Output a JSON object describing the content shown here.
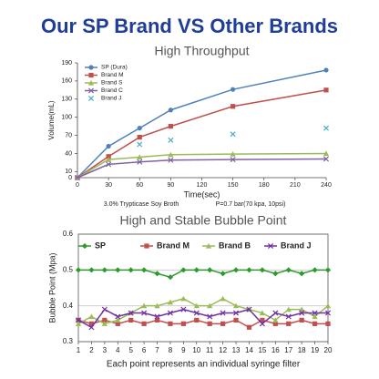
{
  "title": "Our SP Brand VS Other Brands",
  "chart_data": [
    {
      "type": "line",
      "title": "High Throughput",
      "x_label": "Time(sec)",
      "y_label": "Volume(mL)",
      "annotations": [
        "3.0% Trypticase Soy Broth",
        "P=0.7 bar(70 kpa, 10psi)"
      ],
      "x": [
        0,
        30,
        60,
        90,
        150,
        240
      ],
      "xlim": [
        0,
        240
      ],
      "xticks": [
        0,
        30,
        60,
        90,
        120,
        150,
        180,
        210,
        240
      ],
      "ylim": [
        0,
        190
      ],
      "yticks": [
        0,
        10,
        40,
        70,
        100,
        130,
        160,
        190
      ],
      "grid": false,
      "frame": false,
      "legend": "upper left",
      "series": [
        {
          "name": "SP (Dura)",
          "color": "#4f81bd",
          "marker": "circle",
          "values": [
            0,
            52,
            82,
            112,
            146,
            178
          ]
        },
        {
          "name": "Brand M",
          "color": "#c0504d",
          "marker": "square",
          "values": [
            0,
            35,
            67,
            85,
            118,
            145
          ]
        },
        {
          "name": "Brand S",
          "color": "#9bbb59",
          "marker": "triangle",
          "values": [
            0,
            30,
            34,
            38,
            39,
            40
          ]
        },
        {
          "name": "Brand C",
          "color": "#8064a2",
          "marker": "x",
          "values": [
            0,
            22,
            26,
            29,
            30,
            31
          ]
        },
        {
          "name": "Brand J",
          "color": "#4bacc6",
          "marker": "x",
          "line": false,
          "values": [
            null,
            null,
            55,
            62,
            72,
            82
          ]
        }
      ]
    },
    {
      "type": "line",
      "title": "High and Stable Bubble Point",
      "x_label": "Each point represents an individual syringe filter",
      "y_label": "Bubble Point (Mpa)",
      "x": [
        1,
        2,
        3,
        4,
        5,
        6,
        7,
        8,
        9,
        10,
        11,
        12,
        13,
        14,
        15,
        16,
        17,
        18,
        19,
        20
      ],
      "xlim": [
        1,
        20
      ],
      "xticks": [
        1,
        2,
        3,
        4,
        5,
        6,
        7,
        8,
        9,
        10,
        11,
        12,
        13,
        14,
        15,
        16,
        17,
        18,
        19,
        20
      ],
      "ylim": [
        0.3,
        0.6
      ],
      "yticks": [
        0.3,
        0.4,
        0.5,
        0.6
      ],
      "grid": true,
      "frame": true,
      "legend": "top",
      "series": [
        {
          "name": "SP",
          "color": "#2e9a2e",
          "marker": "diamond",
          "values": [
            0.5,
            0.5,
            0.5,
            0.5,
            0.5,
            0.5,
            0.49,
            0.48,
            0.5,
            0.5,
            0.5,
            0.49,
            0.5,
            0.5,
            0.5,
            0.49,
            0.5,
            0.49,
            0.5,
            0.5
          ]
        },
        {
          "name": "Brand M",
          "color": "#c0504d",
          "marker": "square",
          "values": [
            0.36,
            0.35,
            0.36,
            0.35,
            0.36,
            0.35,
            0.36,
            0.35,
            0.35,
            0.36,
            0.35,
            0.35,
            0.36,
            0.34,
            0.36,
            0.35,
            0.35,
            0.36,
            0.35,
            0.35
          ]
        },
        {
          "name": "Brand B",
          "color": "#9bbb59",
          "marker": "triangle",
          "values": [
            0.35,
            0.37,
            0.35,
            0.36,
            0.38,
            0.4,
            0.4,
            0.41,
            0.42,
            0.4,
            0.4,
            0.42,
            0.4,
            0.39,
            0.38,
            0.36,
            0.39,
            0.39,
            0.37,
            0.4
          ]
        },
        {
          "name": "Brand J",
          "color": "#7030a0",
          "marker": "x",
          "values": [
            0.36,
            0.34,
            0.39,
            0.37,
            0.38,
            0.38,
            0.37,
            0.38,
            0.39,
            0.38,
            0.37,
            0.38,
            0.38,
            0.39,
            0.35,
            0.38,
            0.37,
            0.38,
            0.38,
            0.38
          ]
        }
      ]
    }
  ]
}
